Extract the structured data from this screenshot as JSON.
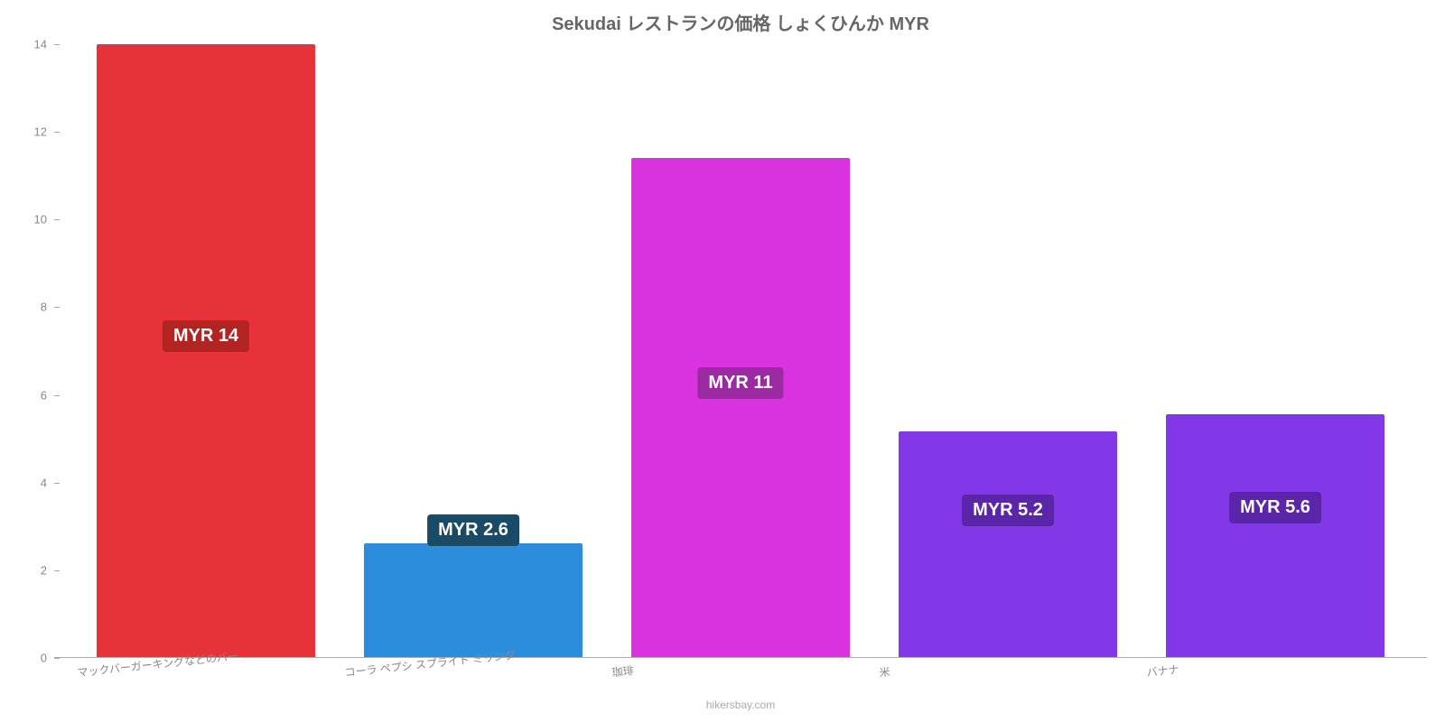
{
  "chart": {
    "type": "bar",
    "title": "Sekudai レストランの価格 しょくひんか MYR",
    "title_fontsize": 20,
    "title_color": "#666666",
    "background_color": "#ffffff",
    "attribution": "hikersbay.com",
    "y_axis": {
      "min": 0,
      "max": 14,
      "ticks": [
        0,
        2,
        4,
        6,
        8,
        10,
        12,
        14
      ],
      "tick_color": "#888888",
      "tick_fontsize": 13
    },
    "x_axis": {
      "label_color": "#888888",
      "label_fontsize": 12,
      "label_rotation": -6
    },
    "bars": [
      {
        "category": "マックバーガーキングなどのバー",
        "value": 14,
        "color": "#e8323a",
        "label": "MYR 14",
        "label_bg": "#b22421",
        "label_top_percent": 45
      },
      {
        "category": "コーラ ペプシ スプライト ミリンダ",
        "value": 2.6,
        "color": "#2d8ddd",
        "label": "MYR 2.6",
        "label_bg": "#1a4a66",
        "label_top_percent": -8
      },
      {
        "category": "珈琲",
        "value": 11.4,
        "color": "#d933e0",
        "label": "MYR 11",
        "label_bg": "#9a2aa0",
        "label_top_percent": 42
      },
      {
        "category": "米",
        "value": 5.15,
        "color": "#8338e8",
        "label": "MYR 5.2",
        "label_bg": "#5a25a8",
        "label_top_percent": 28
      },
      {
        "category": "バナナ",
        "value": 5.55,
        "color": "#8338e8",
        "label": "MYR 5.6",
        "label_bg": "#5a25a8",
        "label_top_percent": 32
      }
    ]
  }
}
